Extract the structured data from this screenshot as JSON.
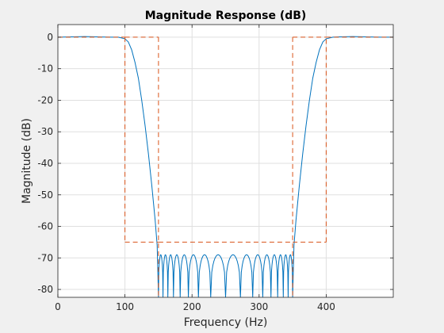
{
  "chart_data": {
    "type": "line",
    "title": "Magnitude Response (dB)",
    "xlabel": "Frequency (Hz)",
    "ylabel": "Magnitude (dB)",
    "xlim": [
      0,
      500
    ],
    "ylim": [
      -82.5,
      4
    ],
    "xticks": [
      0,
      100,
      200,
      300,
      400
    ],
    "yticks": [
      0,
      -10,
      -20,
      -30,
      -40,
      -50,
      -60,
      -70,
      -80
    ],
    "grid": true,
    "colors": {
      "response": "#0072bd",
      "mask": "#d95319",
      "grid": "#dfdfdf",
      "axes_bg": "#ffffff",
      "figure_bg": "#f0f0f0"
    },
    "series": [
      {
        "style": "solid",
        "stopband_edges": [
          150,
          350
        ],
        "stopband_ripple_level": -69,
        "stopband_lobe_count": 16,
        "x": [
          0,
          20,
          40,
          60,
          80,
          90,
          100,
          105,
          110,
          115,
          120,
          125,
          130,
          135,
          140,
          145,
          148,
          150,
          350,
          352,
          355,
          360,
          365,
          370,
          375,
          380,
          385,
          390,
          395,
          400,
          410,
          420,
          440,
          460,
          480,
          500
        ],
        "y": [
          0,
          0.1,
          0.2,
          0.1,
          0.0,
          0.0,
          -0.5,
          -1.5,
          -4,
          -8,
          -13,
          -20,
          -28,
          -37,
          -47,
          -58,
          -66,
          -82.5,
          -82.5,
          -66,
          -58,
          -47,
          -37,
          -28,
          -20,
          -13,
          -8,
          -4,
          -1.5,
          -0.5,
          0.0,
          0.1,
          0.2,
          0.1,
          0.0,
          0
        ]
      },
      {
        "style": "dashed",
        "segments": [
          {
            "x": [
              0,
              100
            ],
            "y": [
              0,
              0
            ]
          },
          {
            "x": [
              100,
              100
            ],
            "y": [
              0,
              -65
            ]
          },
          {
            "x": [
              100,
              150
            ],
            "y": [
              -65,
              -65
            ]
          },
          {
            "x": [
              150,
              150
            ],
            "y": [
              0,
              -82.5
            ]
          },
          {
            "x": [
              100,
              150
            ],
            "y": [
              0,
              0
            ]
          },
          {
            "x": [
              150,
              350
            ],
            "y": [
              -65,
              -65
            ]
          },
          {
            "x": [
              350,
              400
            ],
            "y": [
              0,
              0
            ]
          },
          {
            "x": [
              350,
              350
            ],
            "y": [
              0,
              -82.5
            ]
          },
          {
            "x": [
              350,
              400
            ],
            "y": [
              -65,
              -65
            ]
          },
          {
            "x": [
              400,
              400
            ],
            "y": [
              -65,
              0
            ]
          },
          {
            "x": [
              400,
              500
            ],
            "y": [
              0,
              0
            ]
          }
        ]
      }
    ]
  }
}
